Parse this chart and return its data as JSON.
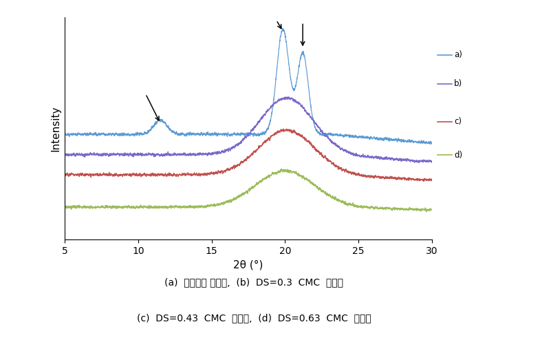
{
  "title": "",
  "xlabel": "2θ (°)",
  "ylabel": "Intensity",
  "xlim": [
    5,
    30
  ],
  "x_ticks": [
    5,
    10,
    15,
    20,
    25,
    30
  ],
  "background_color": "#ffffff",
  "line_colors": [
    "#5b9bd5",
    "#7b68c8",
    "#c0504d",
    "#9bbb59"
  ],
  "line_labels": [
    "a)",
    "b)",
    "c)",
    "d)"
  ],
  "caption_line1": "(a)  비스코스 레이온,  (b)  DS=0.3  CMC  부직포",
  "caption_line2": "(c)  DS=0.43  CMC  부직포,  (d)  DS=0.63  CMC  부직포",
  "ylim": [
    0.0,
    1.1
  ],
  "noise_level": 0.005,
  "seed": 42
}
